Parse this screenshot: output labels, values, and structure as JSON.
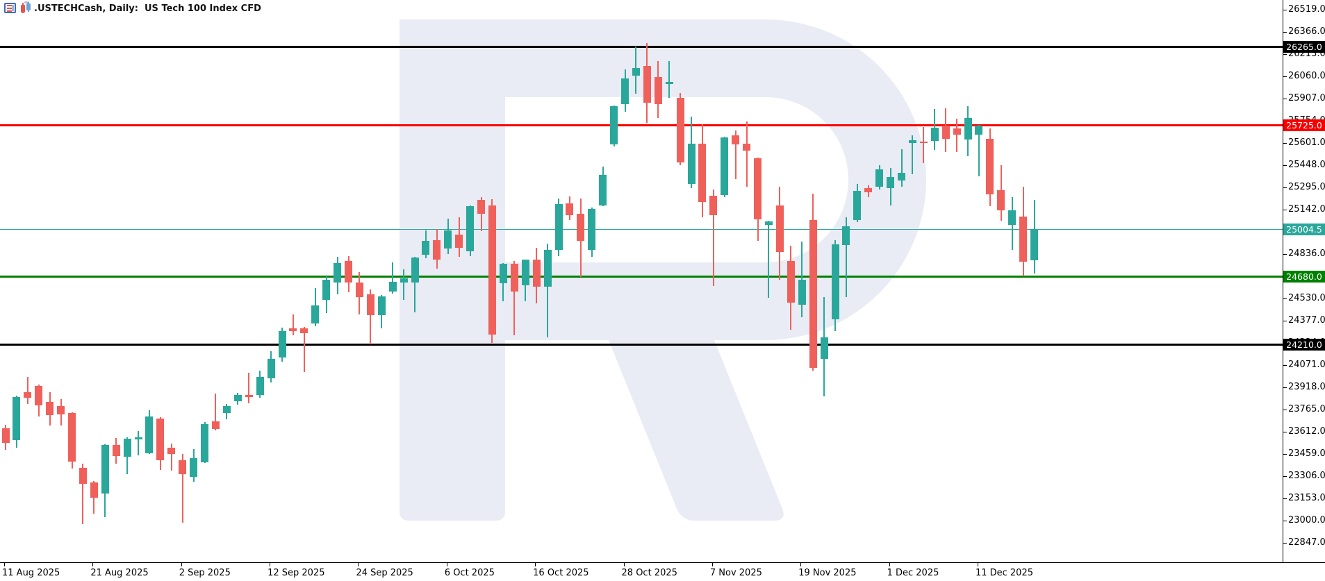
{
  "title": ".USTECHCash, Daily:  US Tech 100 Index CFD",
  "icons": [
    "quotes-panel-icon",
    "candlestick-chart-icon"
  ],
  "colors": {
    "bull": "#2aa79b",
    "bear": "#f0605b",
    "watermark": "#e9ecf4",
    "axis": "#000000"
  },
  "chart_data": {
    "type": "candlestick",
    "symbol": ".USTECHCash",
    "timeframe": "Daily",
    "description": "US Tech 100 Index CFD",
    "grid": false,
    "price_axis_ticks": [
      "26519.0",
      "26366.0",
      "26213.0",
      "26060.0",
      "25907.0",
      "25754.0",
      "25601.0",
      "25448.0",
      "25295.0",
      "25142.0",
      "24989.0",
      "24836.0",
      "24683.0",
      "24530.0",
      "24377.0",
      "24224.0",
      "24071.0",
      "23918.0",
      "23765.0",
      "23612.0",
      "23459.0",
      "23306.0",
      "23153.0",
      "23000.0",
      "22847.0"
    ],
    "price_tick_step": 153,
    "price_axis_top_value": 26519.0,
    "price_axis_bottom_value": 22847.0,
    "time_axis_ticks": [
      "11 Aug 2025",
      "21 Aug 2025",
      "2 Sep 2025",
      "12 Sep 2025",
      "24 Sep 2025",
      "6 Oct 2025",
      "16 Oct 2025",
      "28 Oct 2025",
      "7 Nov 2025",
      "19 Nov 2025",
      "1 Dec 2025",
      "11 Dec 2025"
    ],
    "hlines": [
      {
        "price": 26265.0,
        "label": "26265.0",
        "color": "#000000",
        "thickness": 3
      },
      {
        "price": 25725.0,
        "label": "25725.0",
        "color": "#f80000",
        "thickness": 3
      },
      {
        "price": 25004.5,
        "label": "25004.5",
        "color": "#2aa79b",
        "thickness": 1
      },
      {
        "price": 24680.0,
        "label": "24680.0",
        "color": "#008000",
        "thickness": 3
      },
      {
        "price": 24210.0,
        "label": "24210.0",
        "color": "#000000",
        "thickness": 3
      }
    ],
    "candle_columns": [
      "date",
      "open",
      "high",
      "low",
      "close"
    ],
    "candles": [
      [
        "2025-08-11",
        23635,
        23660,
        23490,
        23535
      ],
      [
        "2025-08-12",
        23555,
        23860,
        23500,
        23850
      ],
      [
        "2025-08-13",
        23885,
        23990,
        23805,
        23848
      ],
      [
        "2025-08-14",
        23928,
        23935,
        23715,
        23792
      ],
      [
        "2025-08-15",
        23818,
        23885,
        23655,
        23728
      ],
      [
        "2025-08-18",
        23790,
        23836,
        23655,
        23733
      ],
      [
        "2025-08-19",
        23741,
        23748,
        23359,
        23406
      ],
      [
        "2025-08-20",
        23363,
        23390,
        22976,
        23255
      ],
      [
        "2025-08-21",
        23265,
        23272,
        23048,
        23160
      ],
      [
        "2025-08-22",
        23185,
        23528,
        23025,
        23520
      ],
      [
        "2025-08-25",
        23520,
        23570,
        23390,
        23445
      ],
      [
        "2025-08-26",
        23440,
        23572,
        23320,
        23565
      ],
      [
        "2025-08-27",
        23560,
        23618,
        23447,
        23575
      ],
      [
        "2025-08-28",
        23465,
        23762,
        23458,
        23717
      ],
      [
        "2025-08-29",
        23704,
        23712,
        23350,
        23414
      ],
      [
        "2025-09-01",
        23500,
        23533,
        23342,
        23458
      ],
      [
        "2025-09-02",
        23415,
        23460,
        22985,
        23320
      ],
      [
        "2025-09-03",
        23300,
        23494,
        23270,
        23430
      ],
      [
        "2025-09-04",
        23400,
        23680,
        23395,
        23665
      ],
      [
        "2025-09-05",
        23682,
        23876,
        23620,
        23633
      ],
      [
        "2025-09-08",
        23740,
        23802,
        23700,
        23790
      ],
      [
        "2025-09-09",
        23820,
        23882,
        23798,
        23865
      ],
      [
        "2025-09-10",
        23865,
        24019,
        23810,
        23850
      ],
      [
        "2025-09-11",
        23865,
        24035,
        23845,
        23990
      ],
      [
        "2025-09-12",
        23980,
        24165,
        23950,
        24115
      ],
      [
        "2025-09-15",
        24125,
        24330,
        24095,
        24305
      ],
      [
        "2025-09-16",
        24325,
        24420,
        24275,
        24305
      ],
      [
        "2025-09-17",
        24323,
        24332,
        24025,
        24290
      ],
      [
        "2025-09-18",
        24360,
        24600,
        24340,
        24480
      ],
      [
        "2025-09-19",
        24520,
        24685,
        24430,
        24660
      ],
      [
        "2025-09-22",
        24640,
        24815,
        24560,
        24775
      ],
      [
        "2025-09-23",
        24790,
        24820,
        24575,
        24640
      ],
      [
        "2025-09-24",
        24640,
        24710,
        24420,
        24540
      ],
      [
        "2025-09-25",
        24560,
        24590,
        24215,
        24415
      ],
      [
        "2025-09-26",
        24415,
        24552,
        24325,
        24545
      ],
      [
        "2025-09-29",
        24580,
        24780,
        24565,
        24645
      ],
      [
        "2025-09-30",
        24640,
        24730,
        24520,
        24670
      ],
      [
        "2025-10-01",
        24640,
        24815,
        24435,
        24810
      ],
      [
        "2025-10-02",
        24830,
        25000,
        24805,
        24925
      ],
      [
        "2025-10-03",
        24930,
        25010,
        24735,
        24800
      ],
      [
        "2025-10-06",
        24875,
        25080,
        24835,
        25000
      ],
      [
        "2025-10-07",
        24970,
        25090,
        24815,
        24880
      ],
      [
        "2025-10-08",
        24855,
        25172,
        24820,
        25165
      ],
      [
        "2025-10-09",
        25210,
        25230,
        24995,
        25115
      ],
      [
        "2025-10-10",
        25170,
        25215,
        24225,
        24280
      ],
      [
        "2025-10-13",
        24633,
        24775,
        24510,
        24769
      ],
      [
        "2025-10-14",
        24769,
        24790,
        24276,
        24577
      ],
      [
        "2025-10-15",
        24623,
        24800,
        24511,
        24798
      ],
      [
        "2025-10-16",
        24798,
        24880,
        24498,
        24610
      ],
      [
        "2025-10-17",
        24610,
        24909,
        24262,
        24864
      ],
      [
        "2025-10-20",
        24865,
        25220,
        24820,
        25180
      ],
      [
        "2025-10-21",
        25185,
        25235,
        25070,
        25105
      ],
      [
        "2025-10-22",
        25115,
        25220,
        24680,
        24925
      ],
      [
        "2025-10-23",
        24865,
        25155,
        24815,
        25145
      ],
      [
        "2025-10-24",
        25170,
        25440,
        25165,
        25380
      ],
      [
        "2025-10-27",
        25590,
        25860,
        25577,
        25853
      ],
      [
        "2025-10-28",
        25870,
        26110,
        25815,
        26045
      ],
      [
        "2025-10-29",
        26065,
        26265,
        25940,
        26115
      ],
      [
        "2025-10-30",
        26130,
        26290,
        25740,
        25880
      ],
      [
        "2025-10-31",
        26055,
        26165,
        25775,
        25870
      ],
      [
        "2025-11-03",
        26005,
        26165,
        25910,
        26020
      ],
      [
        "2025-11-04",
        25910,
        25945,
        25450,
        25465
      ],
      [
        "2025-11-05",
        25320,
        25785,
        25290,
        25595
      ],
      [
        "2025-11-06",
        25595,
        25730,
        25090,
        25195
      ],
      [
        "2025-11-07",
        25240,
        25280,
        24615,
        25105
      ],
      [
        "2025-11-10",
        25240,
        25645,
        25230,
        25640
      ],
      [
        "2025-11-11",
        25655,
        25685,
        25350,
        25590
      ],
      [
        "2025-11-12",
        25595,
        25750,
        25300,
        25550
      ],
      [
        "2025-11-13",
        25495,
        25500,
        24925,
        25075
      ],
      [
        "2025-11-14",
        25035,
        25065,
        24535,
        25060
      ],
      [
        "2025-11-17",
        25170,
        25300,
        24660,
        24850
      ],
      [
        "2025-11-18",
        24790,
        24895,
        24315,
        24500
      ],
      [
        "2025-11-19",
        24485,
        24920,
        24400,
        24660
      ],
      [
        "2025-11-20",
        25070,
        25250,
        24035,
        24050
      ],
      [
        "2025-11-21",
        24115,
        24540,
        23855,
        24260
      ],
      [
        "2025-11-24",
        24385,
        24930,
        24305,
        24905
      ],
      [
        "2025-11-25",
        24900,
        25090,
        24540,
        25025
      ],
      [
        "2025-11-26",
        25070,
        25320,
        25055,
        25270
      ],
      [
        "2025-11-27",
        25290,
        25310,
        25230,
        25260
      ],
      [
        "2025-11-28",
        25300,
        25450,
        25282,
        25420
      ],
      [
        "2025-12-01",
        25290,
        25430,
        25170,
        25365
      ],
      [
        "2025-12-02",
        25345,
        25560,
        25300,
        25395
      ],
      [
        "2025-12-03",
        25600,
        25655,
        25385,
        25620
      ],
      [
        "2025-12-04",
        25610,
        25710,
        25460,
        25600
      ],
      [
        "2025-12-05",
        25615,
        25835,
        25555,
        25705
      ],
      [
        "2025-12-08",
        25720,
        25840,
        25540,
        25630
      ],
      [
        "2025-12-09",
        25700,
        25770,
        25540,
        25660
      ],
      [
        "2025-12-10",
        25625,
        25855,
        25510,
        25775
      ],
      [
        "2025-12-11",
        25660,
        25725,
        25370,
        25720
      ],
      [
        "2025-12-12",
        25630,
        25700,
        25165,
        25245
      ],
      [
        "2025-12-15",
        25275,
        25450,
        25065,
        25135
      ],
      [
        "2025-12-16",
        25035,
        25230,
        24865,
        25135
      ],
      [
        "2025-12-17",
        25095,
        25300,
        24685,
        24785
      ],
      [
        "2025-12-18",
        24795,
        25210,
        24700,
        25005
      ]
    ]
  }
}
